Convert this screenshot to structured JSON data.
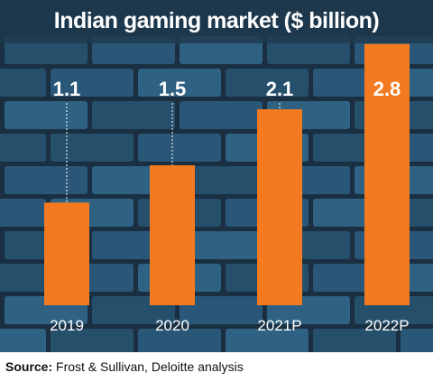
{
  "title": "Indian gaming market ($ billion)",
  "source": {
    "label": "Source:",
    "text": "Frost & Sullivan, Deloitte analysis"
  },
  "colors": {
    "bar": "#f37a20",
    "background": "#223d50",
    "brick": "#2c5c7c",
    "mortar": "#1a3042",
    "text": "#ffffff"
  },
  "chart_data": {
    "type": "bar",
    "title": "Indian gaming market ($ billion)",
    "categories": [
      "2019",
      "2020",
      "2021P",
      "2022P"
    ],
    "values": [
      1.1,
      1.5,
      2.1,
      2.8
    ],
    "data_labels": [
      "1.1",
      "1.5",
      "2.1",
      "2.8"
    ],
    "xlabel": "",
    "ylabel": "",
    "ylim": [
      0,
      3.0
    ],
    "grid": false,
    "legend": "none"
  }
}
